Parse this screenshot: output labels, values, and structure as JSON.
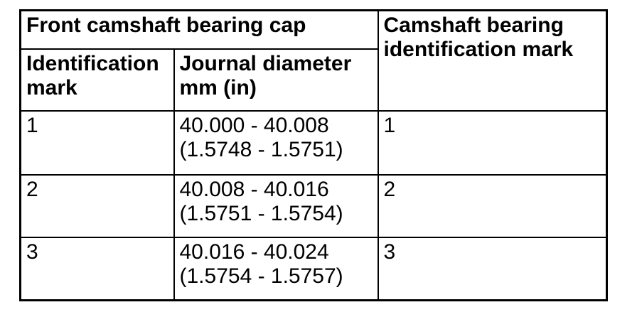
{
  "table": {
    "headers": {
      "front_camshaft_bearing_cap": "Front camshaft bearing cap",
      "identification_mark": "Identification\nmark",
      "journal_diameter": "Journal diameter\nmm (in)",
      "camshaft_bearing_identification_mark": "Camshaft bearing\nidentification mark"
    },
    "rows": [
      {
        "identification_mark": "1",
        "journal_diameter": "40.000 - 40.008\n(1.5748 - 1.5751)",
        "bearing_identification_mark": "1"
      },
      {
        "identification_mark": "2",
        "journal_diameter": "40.008 - 40.016\n(1.5751 - 1.5754)",
        "bearing_identification_mark": "2"
      },
      {
        "identification_mark": "3",
        "journal_diameter": "40.016 - 40.024\n(1.5754 - 1.5757)",
        "bearing_identification_mark": "3"
      }
    ],
    "colors": {
      "border": "#000000",
      "text": "#000000",
      "background": "#ffffff"
    }
  }
}
